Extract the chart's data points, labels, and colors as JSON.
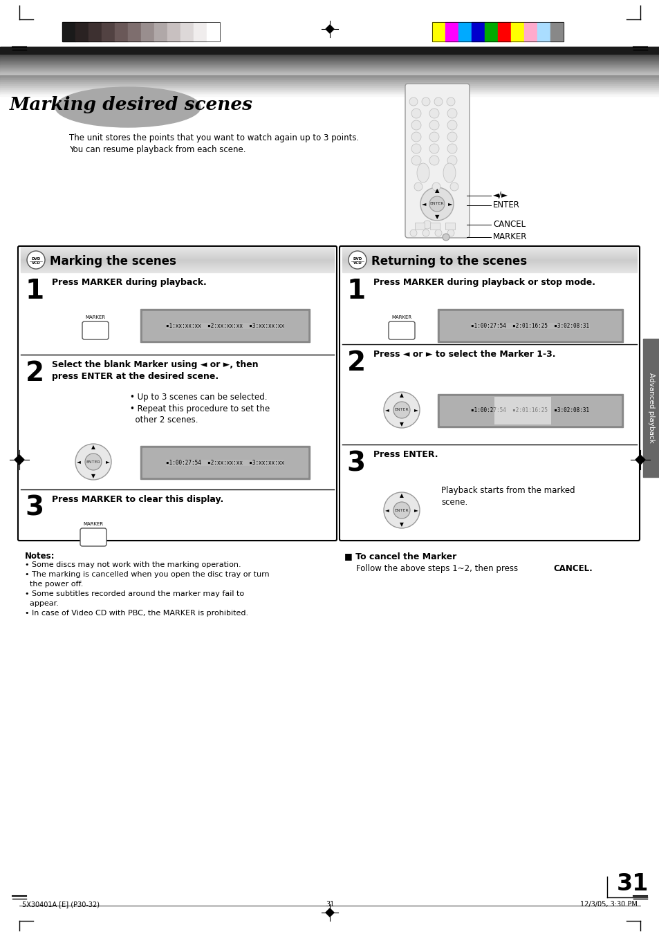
{
  "page_number": "31",
  "footer_left": "5X30401A [E] (P30-32)",
  "footer_center": "31",
  "footer_right": "12/3/05, 3:30 PM",
  "main_title": "Marking desired scenes",
  "subtitle1": "The unit stores the points that you want to watch again up to 3 points.",
  "subtitle2": "You can resume playback from each scene.",
  "left_box_title": "Marking the scenes",
  "right_box_title": "Returning to the scenes",
  "left_step1": "Press MARKER during playback.",
  "left_step2a": "Select the blank Marker using ◄ or ►, then",
  "left_step2b": "press ENTER at the desired scene.",
  "left_bullet1": "• Up to 3 scenes can be selected.",
  "left_bullet2": "• Repeat this procedure to set the",
  "left_bullet2b": "  other 2 scenes.",
  "left_step3": "Press MARKER to clear this display.",
  "right_step1": "Press MARKER during playback or stop mode.",
  "right_step2": "Press ◄ or ► to select the Marker 1-3.",
  "right_step3": "Press ENTER.",
  "right_step3_sub1": "Playback starts from the marked",
  "right_step3_sub2": "scene.",
  "cancel_title": "To cancel the Marker",
  "cancel_text1": "Follow the above steps 1~2, then press ",
  "cancel_text2": "CANCEL.",
  "notes_title": "Notes:",
  "note1": "• Some discs may not work with the marking operation.",
  "note2": "• The marking is cancelled when you open the disc tray or turn",
  "note2b": "  the power off.",
  "note3": "• Some subtitles recorded around the marker may fail to",
  "note3b": "  appear.",
  "note4": "• In case of Video CD with PBC, the MARKER is prohibited.",
  "grayscale_colors": [
    "#1a1a1a",
    "#2a2222",
    "#3d3030",
    "#524242",
    "#6a5858",
    "#7e6e6e",
    "#998e8e",
    "#b0a8a8",
    "#c8c0c0",
    "#ddd8d8",
    "#f0eded",
    "#ffffff"
  ],
  "color_bars": [
    "#ffff00",
    "#ff00ff",
    "#00aaff",
    "#0000cc",
    "#00aa00",
    "#ff0000",
    "#ffff00",
    "#ffaacc",
    "#aaddff",
    "#888888"
  ],
  "bg_color": "#ffffff"
}
